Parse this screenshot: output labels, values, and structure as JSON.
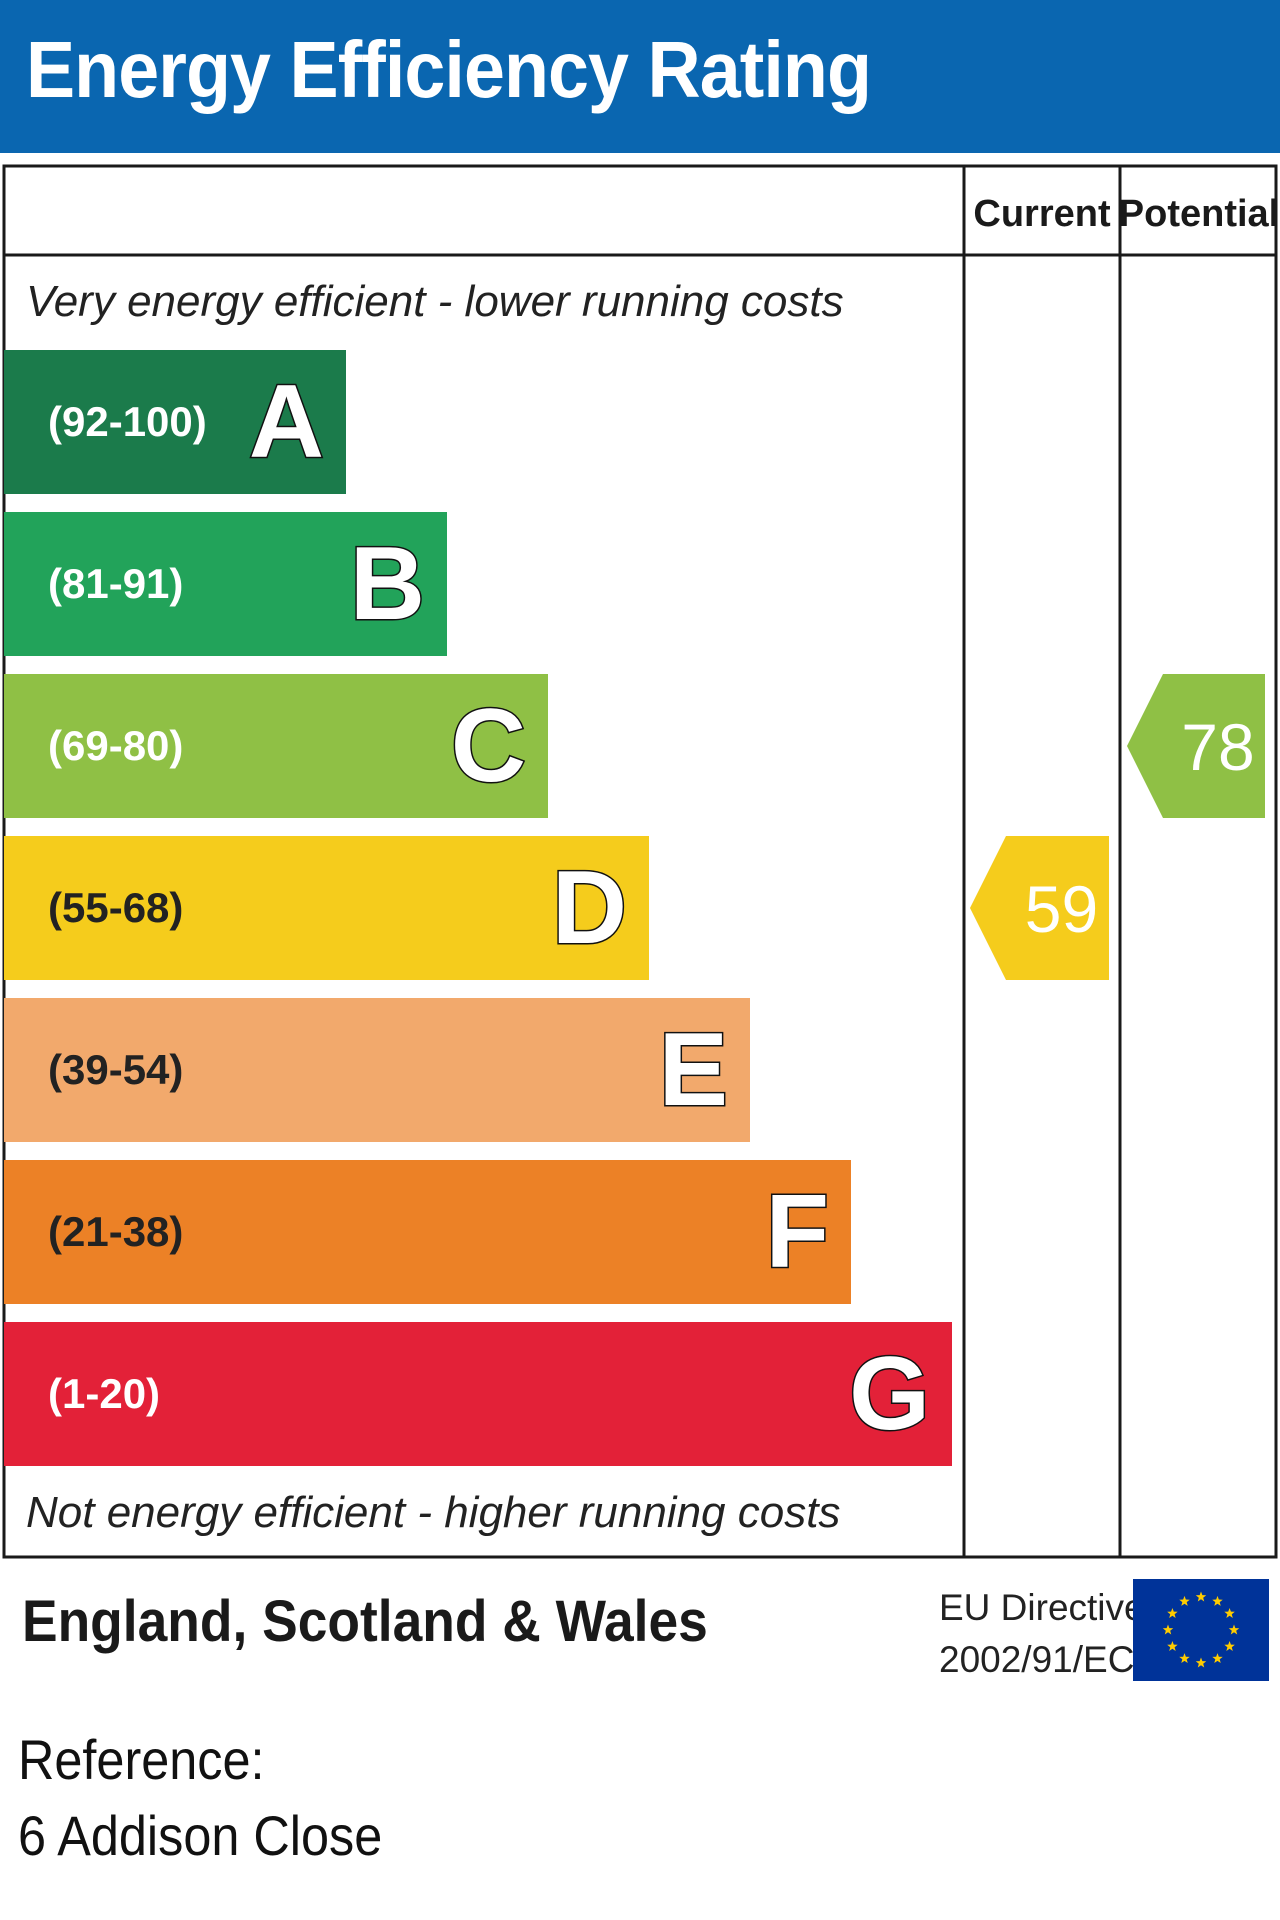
{
  "title": "Energy Efficiency Rating",
  "columns": {
    "current": "Current",
    "potential": "Potential"
  },
  "top_note": "Very energy efficient - lower running costs",
  "bottom_note": "Not energy efficient - higher running costs",
  "region": "England, Scotland & Wales",
  "directive": {
    "line1": "EU Directive",
    "line2": "2002/91/EC"
  },
  "reference": {
    "label": "Reference:",
    "value": "6 Addison Close"
  },
  "colors": {
    "header": "#0a66b0",
    "eu_flag": "#003399",
    "eu_stars": "#ffcc00"
  },
  "chart_data": {
    "type": "bar",
    "categories": [
      "A",
      "B",
      "C",
      "D",
      "E",
      "F",
      "G"
    ],
    "ranges": [
      "(92-100)",
      "(81-91)",
      "(69-80)",
      "(55-68)",
      "(39-54)",
      "(21-38)",
      "(1-20)"
    ],
    "colors": [
      "#1b7b4b",
      "#22a35a",
      "#8fc045",
      "#f5cc1c",
      "#f2a96c",
      "#ec8126",
      "#e32138"
    ],
    "current": {
      "value": 59,
      "band": "D",
      "color": "#f5cc1c"
    },
    "potential": {
      "value": 78,
      "band": "C",
      "color": "#8fc045"
    }
  }
}
